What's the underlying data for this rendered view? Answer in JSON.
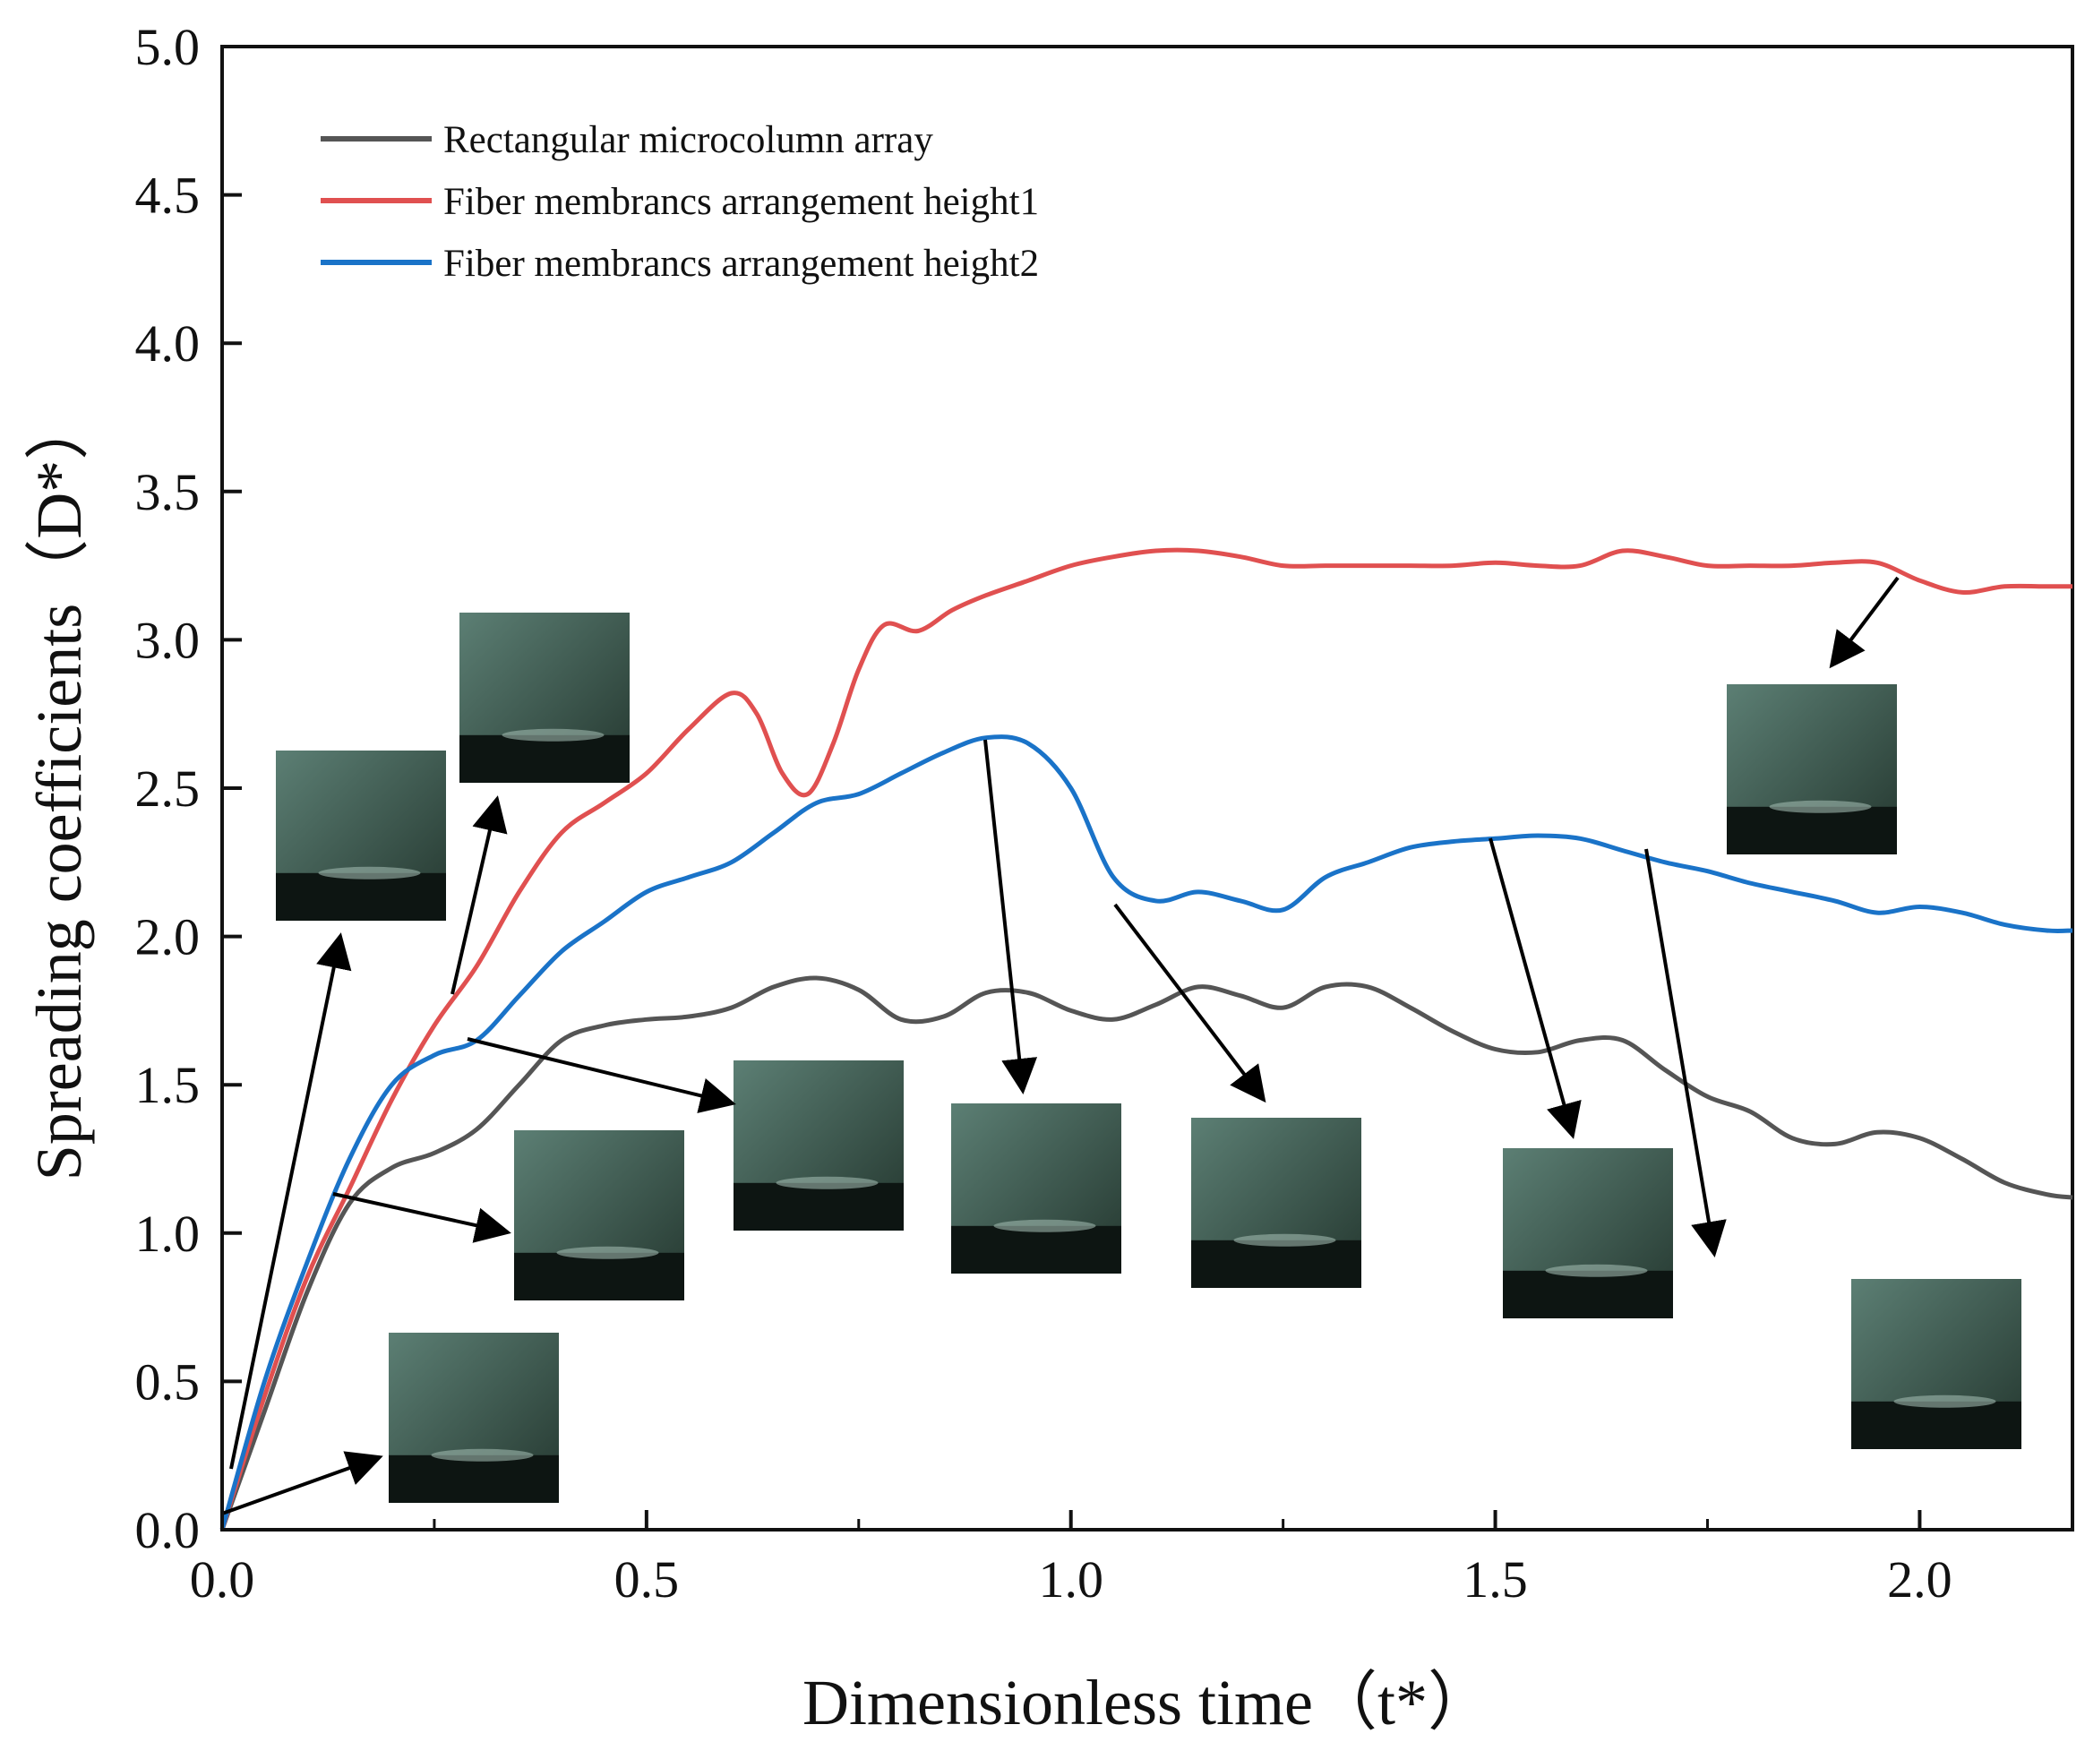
{
  "chart_data": {
    "type": "line",
    "title": "",
    "xlabel": "Dimensionless time（t*）",
    "ylabel": "Spreading coefficients（D*）",
    "xlim": [
      0,
      2.18
    ],
    "ylim": [
      0,
      5.0
    ],
    "x_ticks": [
      {
        "value": 0.0,
        "label": "0.0"
      },
      {
        "value": 0.5,
        "label": "0.5"
      },
      {
        "value": 1.0,
        "label": "1.0"
      },
      {
        "value": 1.5,
        "label": "1.5"
      },
      {
        "value": 2.0,
        "label": "2.0"
      }
    ],
    "y_ticks": [
      {
        "value": 0.0,
        "label": "0.0"
      },
      {
        "value": 0.5,
        "label": "0.5"
      },
      {
        "value": 1.0,
        "label": "1.0"
      },
      {
        "value": 1.5,
        "label": "1.5"
      },
      {
        "value": 2.0,
        "label": "2.0"
      },
      {
        "value": 2.5,
        "label": "2.5"
      },
      {
        "value": 3.0,
        "label": "3.0"
      },
      {
        "value": 3.5,
        "label": "3.5"
      },
      {
        "value": 4.0,
        "label": "4.0"
      },
      {
        "value": 4.5,
        "label": "4.5"
      },
      {
        "value": 5.0,
        "label": "5.0"
      }
    ],
    "grid": false,
    "legend_position": "top-left",
    "series": [
      {
        "name": "Rectangular microcolumn array",
        "color": "#555555",
        "points": [
          [
            0,
            0
          ],
          [
            0.05,
            0.4
          ],
          [
            0.1,
            0.8
          ],
          [
            0.15,
            1.1
          ],
          [
            0.2,
            1.22
          ],
          [
            0.25,
            1.27
          ],
          [
            0.3,
            1.35
          ],
          [
            0.35,
            1.5
          ],
          [
            0.4,
            1.65
          ],
          [
            0.45,
            1.7
          ],
          [
            0.5,
            1.72
          ],
          [
            0.55,
            1.73
          ],
          [
            0.6,
            1.76
          ],
          [
            0.65,
            1.83
          ],
          [
            0.7,
            1.86
          ],
          [
            0.75,
            1.82
          ],
          [
            0.8,
            1.72
          ],
          [
            0.85,
            1.73
          ],
          [
            0.9,
            1.81
          ],
          [
            0.95,
            1.81
          ],
          [
            1.0,
            1.75
          ],
          [
            1.05,
            1.72
          ],
          [
            1.1,
            1.77
          ],
          [
            1.15,
            1.83
          ],
          [
            1.2,
            1.8
          ],
          [
            1.25,
            1.76
          ],
          [
            1.3,
            1.83
          ],
          [
            1.35,
            1.83
          ],
          [
            1.4,
            1.76
          ],
          [
            1.45,
            1.68
          ],
          [
            1.5,
            1.62
          ],
          [
            1.55,
            1.61
          ],
          [
            1.6,
            1.65
          ],
          [
            1.65,
            1.65
          ],
          [
            1.7,
            1.55
          ],
          [
            1.75,
            1.46
          ],
          [
            1.8,
            1.41
          ],
          [
            1.85,
            1.32
          ],
          [
            1.9,
            1.3
          ],
          [
            1.95,
            1.34
          ],
          [
            2.0,
            1.32
          ],
          [
            2.05,
            1.25
          ],
          [
            2.1,
            1.17
          ],
          [
            2.15,
            1.13
          ],
          [
            2.18,
            1.12
          ]
        ]
      },
      {
        "name": "Fiber membrancs arrangement height1",
        "color": "#e05050",
        "points": [
          [
            0,
            0
          ],
          [
            0.05,
            0.45
          ],
          [
            0.1,
            0.85
          ],
          [
            0.15,
            1.15
          ],
          [
            0.2,
            1.45
          ],
          [
            0.25,
            1.7
          ],
          [
            0.3,
            1.9
          ],
          [
            0.35,
            2.15
          ],
          [
            0.4,
            2.35
          ],
          [
            0.45,
            2.45
          ],
          [
            0.5,
            2.55
          ],
          [
            0.55,
            2.7
          ],
          [
            0.6,
            2.82
          ],
          [
            0.63,
            2.75
          ],
          [
            0.66,
            2.55
          ],
          [
            0.69,
            2.48
          ],
          [
            0.72,
            2.65
          ],
          [
            0.75,
            2.9
          ],
          [
            0.78,
            3.05
          ],
          [
            0.82,
            3.03
          ],
          [
            0.86,
            3.1
          ],
          [
            0.9,
            3.15
          ],
          [
            0.95,
            3.2
          ],
          [
            1.0,
            3.25
          ],
          [
            1.05,
            3.28
          ],
          [
            1.1,
            3.3
          ],
          [
            1.15,
            3.3
          ],
          [
            1.2,
            3.28
          ],
          [
            1.25,
            3.25
          ],
          [
            1.3,
            3.25
          ],
          [
            1.35,
            3.25
          ],
          [
            1.4,
            3.25
          ],
          [
            1.45,
            3.25
          ],
          [
            1.5,
            3.26
          ],
          [
            1.55,
            3.25
          ],
          [
            1.6,
            3.25
          ],
          [
            1.65,
            3.3
          ],
          [
            1.7,
            3.28
          ],
          [
            1.75,
            3.25
          ],
          [
            1.8,
            3.25
          ],
          [
            1.85,
            3.25
          ],
          [
            1.9,
            3.26
          ],
          [
            1.95,
            3.26
          ],
          [
            2.0,
            3.2
          ],
          [
            2.05,
            3.16
          ],
          [
            2.1,
            3.18
          ],
          [
            2.15,
            3.18
          ],
          [
            2.18,
            3.18
          ]
        ]
      },
      {
        "name": "Fiber membrancs arrangement height2",
        "color": "#1a73c8",
        "points": [
          [
            0,
            0
          ],
          [
            0.05,
            0.5
          ],
          [
            0.1,
            0.9
          ],
          [
            0.15,
            1.25
          ],
          [
            0.2,
            1.5
          ],
          [
            0.25,
            1.6
          ],
          [
            0.3,
            1.65
          ],
          [
            0.35,
            1.8
          ],
          [
            0.4,
            1.95
          ],
          [
            0.45,
            2.05
          ],
          [
            0.5,
            2.15
          ],
          [
            0.55,
            2.2
          ],
          [
            0.6,
            2.25
          ],
          [
            0.65,
            2.35
          ],
          [
            0.7,
            2.45
          ],
          [
            0.75,
            2.48
          ],
          [
            0.8,
            2.55
          ],
          [
            0.85,
            2.62
          ],
          [
            0.9,
            2.67
          ],
          [
            0.95,
            2.65
          ],
          [
            1.0,
            2.5
          ],
          [
            1.05,
            2.2
          ],
          [
            1.1,
            2.12
          ],
          [
            1.15,
            2.15
          ],
          [
            1.2,
            2.12
          ],
          [
            1.25,
            2.09
          ],
          [
            1.3,
            2.2
          ],
          [
            1.35,
            2.25
          ],
          [
            1.4,
            2.3
          ],
          [
            1.45,
            2.32
          ],
          [
            1.5,
            2.33
          ],
          [
            1.55,
            2.34
          ],
          [
            1.6,
            2.33
          ],
          [
            1.65,
            2.29
          ],
          [
            1.7,
            2.25
          ],
          [
            1.75,
            2.22
          ],
          [
            1.8,
            2.18
          ],
          [
            1.85,
            2.15
          ],
          [
            1.9,
            2.12
          ],
          [
            1.95,
            2.08
          ],
          [
            2.0,
            2.1
          ],
          [
            2.05,
            2.08
          ],
          [
            2.1,
            2.04
          ],
          [
            2.15,
            2.02
          ],
          [
            2.18,
            2.02
          ]
        ]
      }
    ],
    "annotations": [
      {
        "name": "inset-photo-1",
        "x": 0.0,
        "y": 0.0,
        "description": "droplet inset"
      },
      {
        "name": "inset-photo-2",
        "x": 0.0,
        "y": 0.0
      },
      {
        "name": "inset-photo-3",
        "x": 0.13,
        "y": 1.1
      },
      {
        "name": "inset-photo-4",
        "x": 0.28,
        "y": 1.8
      },
      {
        "name": "inset-photo-5",
        "x": 0.28,
        "y": 1.65
      },
      {
        "name": "inset-photo-6",
        "x": 0.91,
        "y": 2.67
      },
      {
        "name": "inset-photo-7",
        "x": 1.07,
        "y": 2.12
      },
      {
        "name": "inset-photo-8",
        "x": 1.52,
        "y": 2.33
      },
      {
        "name": "inset-photo-9",
        "x": 2.02,
        "y": 2.1
      },
      {
        "name": "inset-photo-10",
        "x": 2.0,
        "y": 3.2
      }
    ]
  }
}
